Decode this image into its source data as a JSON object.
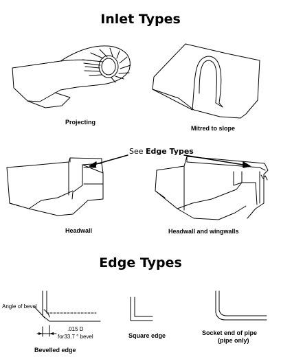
{
  "inlet": {
    "title": "Inlet Types",
    "projecting": "Projecting",
    "mitred": "Mitred to slope",
    "headwall": "Headwall",
    "headwall_wingwalls": "Headwall and wingwalls",
    "see_label": "See",
    "see_target": "Edge Types"
  },
  "edge": {
    "title": "Edge Types",
    "angle_of_bevel": "Angle of bevel",
    "dim_015": ".015 D",
    "dim_bevel": "for33.7 ° bevel",
    "bevelled": "Bevelled edge",
    "square": "Square edge",
    "socket_line1": "Socket end of pipe",
    "socket_line2": "(pipe only)"
  },
  "colors": {
    "ink": "#000000",
    "background": "#ffffff"
  }
}
